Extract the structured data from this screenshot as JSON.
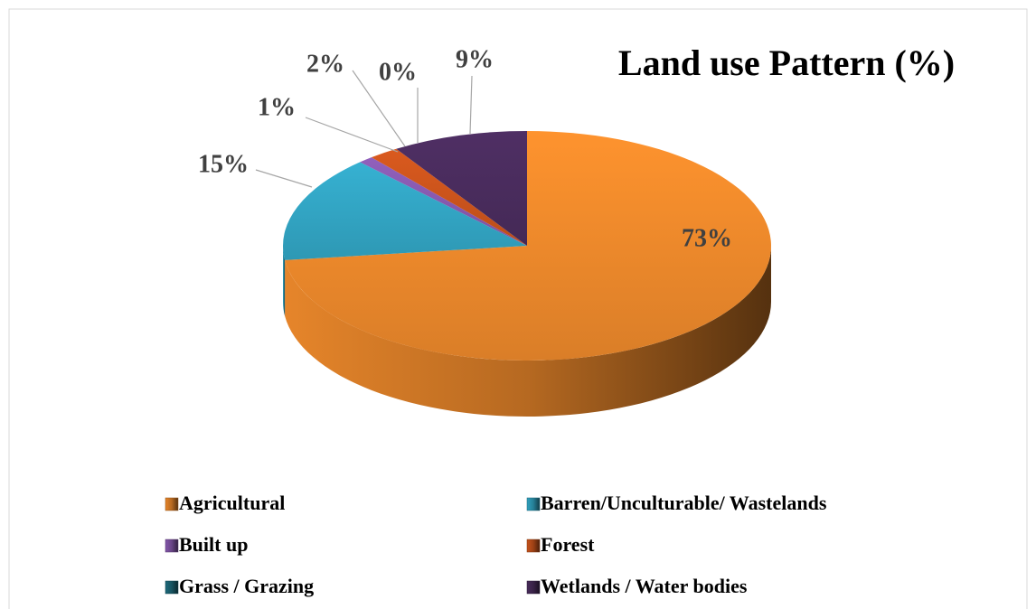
{
  "chart_data": {
    "type": "pie",
    "title": "Land use Pattern (%)",
    "categories": [
      "Agricultural",
      "Barren/Unculturable/ Wastelands",
      "Built up",
      "Forest",
      "Grass / Grazing",
      "Wetlands / Water bodies"
    ],
    "values": [
      73,
      15,
      1,
      2,
      0,
      9
    ],
    "value_labels": [
      "73%",
      "15%",
      "1%",
      "2%",
      "0%",
      "9%"
    ],
    "colors": [
      "#f28c2c",
      "#33a9c8",
      "#8a5bb3",
      "#d0561d",
      "#1f6f80",
      "#4b2d5f"
    ],
    "legend": "bottom"
  }
}
